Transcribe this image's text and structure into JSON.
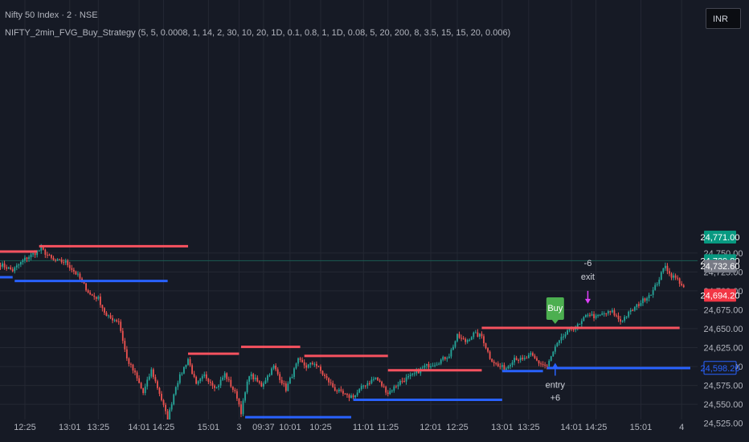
{
  "header": {
    "title": "Nifty 50 Index · 2 · NSE",
    "study": "NIFTY_2min_FVG_Buy_Strategy (5, 5, 0.0008, 1, 14, 2, 30, 10, 20, 1D, 0.1, 0.8, 1, 1D, 0.08, 5, 20, 200, 8, 3.5, 15, 15, 20, 0.006)"
  },
  "currency_button": "INR",
  "chart_data": {
    "type": "candlestick",
    "colors": {
      "up": "#26a69a",
      "down": "#ef5350",
      "bg": "#161a25",
      "grid": "#242833",
      "resistance": "#f7525f",
      "support": "#2962ff",
      "buy": "#4caf50",
      "exit": "#e040fb",
      "entry": "#2962ff"
    },
    "ylim": [
      24520,
      24775
    ],
    "y_ticks": [
      {
        "value": 24525,
        "label": "24,525.00"
      },
      {
        "value": 24550,
        "label": "24,550.00"
      },
      {
        "value": 24575,
        "label": "24,575.00"
      },
      {
        "value": 24600,
        "label": "24,600.00"
      },
      {
        "value": 24625,
        "label": "24,625.00"
      },
      {
        "value": 24650,
        "label": "24,650.00"
      },
      {
        "value": 24675,
        "label": "24,675.00"
      },
      {
        "value": 24700,
        "label": "24,700.00"
      },
      {
        "value": 24725,
        "label": "24,725.00"
      },
      {
        "value": 24750,
        "label": "24,750.00"
      }
    ],
    "x_ticks": [
      {
        "bar": 12,
        "label": "12:25"
      },
      {
        "bar": 34,
        "label": "13:01"
      },
      {
        "bar": 48,
        "label": "13:25"
      },
      {
        "bar": 68,
        "label": "14:01"
      },
      {
        "bar": 80,
        "label": "14:25"
      },
      {
        "bar": 102,
        "label": "15:01"
      },
      {
        "bar": 117,
        "label": "3"
      },
      {
        "bar": 129,
        "label": "09:37"
      },
      {
        "bar": 142,
        "label": "10:01"
      },
      {
        "bar": 157,
        "label": "10:25"
      },
      {
        "bar": 178,
        "label": "11:01"
      },
      {
        "bar": 190,
        "label": "11:25"
      },
      {
        "bar": 211,
        "label": "12:01"
      },
      {
        "bar": 224,
        "label": "12:25"
      },
      {
        "bar": 246,
        "label": "13:01"
      },
      {
        "bar": 259,
        "label": "13:25"
      },
      {
        "bar": 280,
        "label": "14:01"
      },
      {
        "bar": 292,
        "label": "14:25"
      },
      {
        "bar": 314,
        "label": "15:01"
      },
      {
        "bar": 334,
        "label": "4"
      }
    ],
    "price_badges": [
      {
        "value": 24771.0,
        "label": "24,771.00",
        "bg": "#089981",
        "fg": "#ffffff"
      },
      {
        "value": 24739.8,
        "label": "24,739.80",
        "bg": "#089981",
        "fg": "#ffffff"
      },
      {
        "value": 24732.6,
        "label": "24,732.60",
        "bg": "#787b86",
        "fg": "#ffffff"
      },
      {
        "value": 24694.2,
        "label": "24,694.20",
        "bg": "#f23645",
        "fg": "#ffffff"
      },
      {
        "value": 24598.2,
        "label": "24,598.20",
        "bg": "#161a25",
        "fg": "#2962ff",
        "border": "#2962ff"
      }
    ],
    "horizontal_lines": [
      {
        "value": 24739.8,
        "color": "#1a5c53"
      }
    ],
    "levels": [
      {
        "kind": "resistance",
        "value": 24752,
        "from_bar": -2,
        "to_bar": 18
      },
      {
        "kind": "resistance",
        "value": 24759,
        "from_bar": 19,
        "to_bar": 92
      },
      {
        "kind": "support",
        "value": 24718,
        "from_bar": -2,
        "to_bar": 6
      },
      {
        "kind": "support",
        "value": 24713,
        "from_bar": 7,
        "to_bar": 82
      },
      {
        "kind": "resistance",
        "value": 24617,
        "from_bar": 92,
        "to_bar": 117
      },
      {
        "kind": "resistance",
        "value": 24626,
        "from_bar": 118,
        "to_bar": 147
      },
      {
        "kind": "resistance",
        "value": 24614,
        "from_bar": 149,
        "to_bar": 190
      },
      {
        "kind": "resistance",
        "value": 24595,
        "from_bar": 190,
        "to_bar": 236
      },
      {
        "kind": "resistance",
        "value": 24651,
        "from_bar": 236,
        "to_bar": 333
      },
      {
        "kind": "support",
        "value": 24523,
        "from_bar": 83,
        "to_bar": 115
      },
      {
        "kind": "support",
        "value": 24533,
        "from_bar": 120,
        "to_bar": 172
      },
      {
        "kind": "support",
        "value": 24556,
        "from_bar": 173,
        "to_bar": 246
      },
      {
        "kind": "support",
        "value": 24594,
        "from_bar": 246,
        "to_bar": 266
      },
      {
        "kind": "support",
        "value": 24598,
        "from_bar": 268,
        "to_bar": 345
      }
    ],
    "anchors": [
      [
        0,
        24735
      ],
      [
        6,
        24727
      ],
      [
        12,
        24742
      ],
      [
        20,
        24755
      ],
      [
        26,
        24740
      ],
      [
        32,
        24738
      ],
      [
        38,
        24720
      ],
      [
        44,
        24695
      ],
      [
        48,
        24690
      ],
      [
        52,
        24666
      ],
      [
        58,
        24660
      ],
      [
        62,
        24610
      ],
      [
        66,
        24590
      ],
      [
        70,
        24565
      ],
      [
        74,
        24595
      ],
      [
        78,
        24565
      ],
      [
        82,
        24530
      ],
      [
        86,
        24575
      ],
      [
        92,
        24610
      ],
      [
        96,
        24575
      ],
      [
        100,
        24588
      ],
      [
        106,
        24572
      ],
      [
        110,
        24590
      ],
      [
        116,
        24560
      ],
      [
        118,
        24540
      ],
      [
        122,
        24590
      ],
      [
        128,
        24575
      ],
      [
        134,
        24600
      ],
      [
        140,
        24570
      ],
      [
        146,
        24608
      ],
      [
        150,
        24600
      ],
      [
        154,
        24605
      ],
      [
        158,
        24590
      ],
      [
        164,
        24570
      ],
      [
        170,
        24560
      ],
      [
        174,
        24562
      ],
      [
        178,
        24575
      ],
      [
        184,
        24585
      ],
      [
        190,
        24565
      ],
      [
        196,
        24580
      ],
      [
        202,
        24588
      ],
      [
        208,
        24600
      ],
      [
        214,
        24605
      ],
      [
        220,
        24615
      ],
      [
        224,
        24640
      ],
      [
        228,
        24633
      ],
      [
        232,
        24643
      ],
      [
        236,
        24640
      ],
      [
        240,
        24612
      ],
      [
        244,
        24600
      ],
      [
        248,
        24598
      ],
      [
        252,
        24612
      ],
      [
        256,
        24608
      ],
      [
        260,
        24615
      ],
      [
        264,
        24605
      ],
      [
        268,
        24600
      ],
      [
        272,
        24625
      ],
      [
        276,
        24640
      ],
      [
        280,
        24650
      ],
      [
        284,
        24655
      ],
      [
        288,
        24670
      ],
      [
        292,
        24665
      ],
      [
        296,
        24670
      ],
      [
        300,
        24672
      ],
      [
        304,
        24660
      ],
      [
        308,
        24670
      ],
      [
        312,
        24680
      ],
      [
        316,
        24690
      ],
      [
        320,
        24700
      ],
      [
        324,
        24722
      ],
      [
        326,
        24735
      ],
      [
        328,
        24722
      ],
      [
        332,
        24715
      ],
      [
        335,
        24705
      ]
    ],
    "annotations": [
      {
        "kind": "buy",
        "bar": 272,
        "value": 24651,
        "label": "Buy"
      },
      {
        "kind": "entry",
        "bar": 272,
        "value": 24607,
        "label": "entry",
        "sub": "+6"
      },
      {
        "kind": "exit",
        "bar": 288,
        "value": 24683,
        "label": "exit",
        "sub": "-6"
      }
    ]
  }
}
